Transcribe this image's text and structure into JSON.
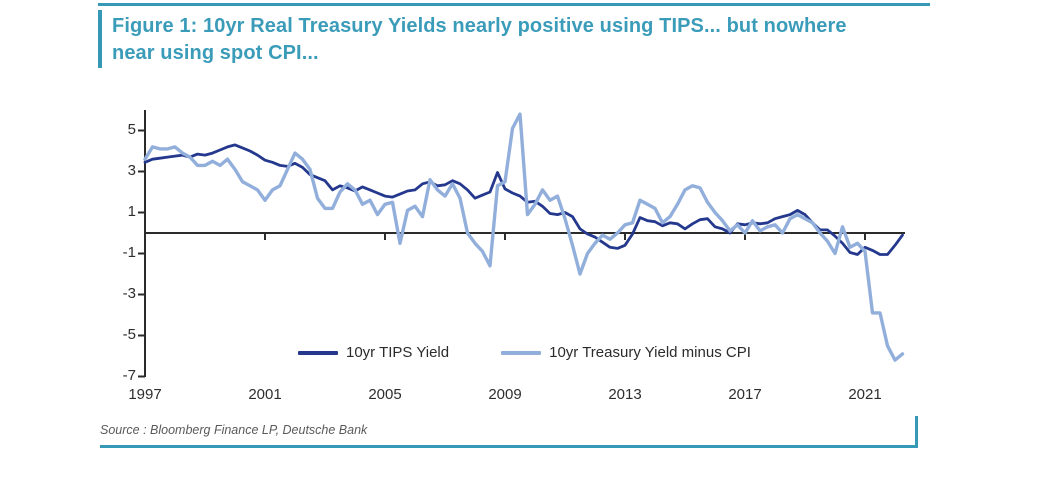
{
  "figure": {
    "title_line1": "Figure 1: 10yr Real Treasury Yields nearly positive using TIPS... but nowhere",
    "title_line2": "near using spot CPI...",
    "source": "Source : Bloomberg Finance LP, Deutsche Bank"
  },
  "colors": {
    "accent_teal": "#3598b4",
    "title_text": "#3b9cba",
    "axis": "#2b2b2b",
    "tips_line": "#24388e",
    "cpi_line": "#92afdc"
  },
  "chart_data": {
    "type": "line",
    "title": "10yr Real Treasury Yields: TIPS vs spot CPI",
    "xlabel": "",
    "ylabel": "",
    "xlim": [
      1997,
      2022.5
    ],
    "ylim": [
      -7,
      6
    ],
    "grid": false,
    "legend_position": "bottom-center-inside",
    "x_ticks": [
      1997,
      2001,
      2005,
      2009,
      2013,
      2017,
      2021
    ],
    "y_ticks": [
      5,
      3,
      1,
      -1,
      -3,
      -5,
      -7
    ],
    "x_start": 1997,
    "x_step": 0.25,
    "series": [
      {
        "name": "10yr TIPS Yield",
        "color": "#24388e",
        "values": [
          3.45,
          3.6,
          3.65,
          3.7,
          3.75,
          3.8,
          3.7,
          3.85,
          3.8,
          3.9,
          4.05,
          4.2,
          4.3,
          4.15,
          4.0,
          3.8,
          3.55,
          3.45,
          3.3,
          3.25,
          3.4,
          3.2,
          2.85,
          2.7,
          2.55,
          2.1,
          2.3,
          2.2,
          2.05,
          2.25,
          2.1,
          1.95,
          1.8,
          1.75,
          1.9,
          2.05,
          2.1,
          2.4,
          2.5,
          2.3,
          2.35,
          2.55,
          2.4,
          2.1,
          1.7,
          1.85,
          2.0,
          2.95,
          2.15,
          1.95,
          1.8,
          1.5,
          1.55,
          1.3,
          0.95,
          0.9,
          1.0,
          0.8,
          0.2,
          -0.05,
          -0.2,
          -0.45,
          -0.7,
          -0.75,
          -0.6,
          -0.05,
          0.75,
          0.6,
          0.55,
          0.35,
          0.5,
          0.45,
          0.2,
          0.45,
          0.65,
          0.7,
          0.3,
          0.2,
          0.0,
          0.45,
          0.4,
          0.5,
          0.45,
          0.5,
          0.7,
          0.8,
          0.9,
          1.1,
          0.9,
          0.5,
          0.15,
          0.15,
          -0.15,
          -0.5,
          -0.95,
          -1.05,
          -0.7,
          -0.85,
          -1.05,
          -1.05,
          -0.6,
          -0.1
        ]
      },
      {
        "name": "10yr Treasury Yield minus CPI",
        "color": "#92afdc",
        "values": [
          3.6,
          4.2,
          4.1,
          4.1,
          4.2,
          3.9,
          3.7,
          3.3,
          3.3,
          3.5,
          3.3,
          3.6,
          3.1,
          2.5,
          2.3,
          2.1,
          1.6,
          2.1,
          2.3,
          3.1,
          3.9,
          3.6,
          3.1,
          1.7,
          1.2,
          1.2,
          2.0,
          2.4,
          2.1,
          1.4,
          1.6,
          0.9,
          1.4,
          1.5,
          -0.5,
          1.1,
          1.3,
          0.8,
          2.6,
          2.1,
          1.8,
          2.4,
          1.7,
          0.0,
          -0.5,
          -0.9,
          -1.6,
          2.3,
          2.5,
          5.1,
          5.8,
          0.9,
          1.4,
          2.1,
          1.6,
          1.8,
          0.7,
          -0.6,
          -2.0,
          -1.0,
          -0.5,
          -0.1,
          -0.3,
          0.0,
          0.4,
          0.5,
          1.6,
          1.4,
          1.2,
          0.5,
          0.8,
          1.4,
          2.1,
          2.3,
          2.2,
          1.5,
          1.0,
          0.6,
          0.1,
          0.4,
          0.0,
          0.6,
          0.1,
          0.3,
          0.4,
          0.0,
          0.7,
          0.9,
          0.7,
          0.5,
          0.0,
          -0.4,
          -1.0,
          0.3,
          -0.7,
          -0.5,
          -0.9,
          -3.9,
          -3.9,
          -5.5,
          -6.2,
          -5.9
        ]
      }
    ]
  }
}
